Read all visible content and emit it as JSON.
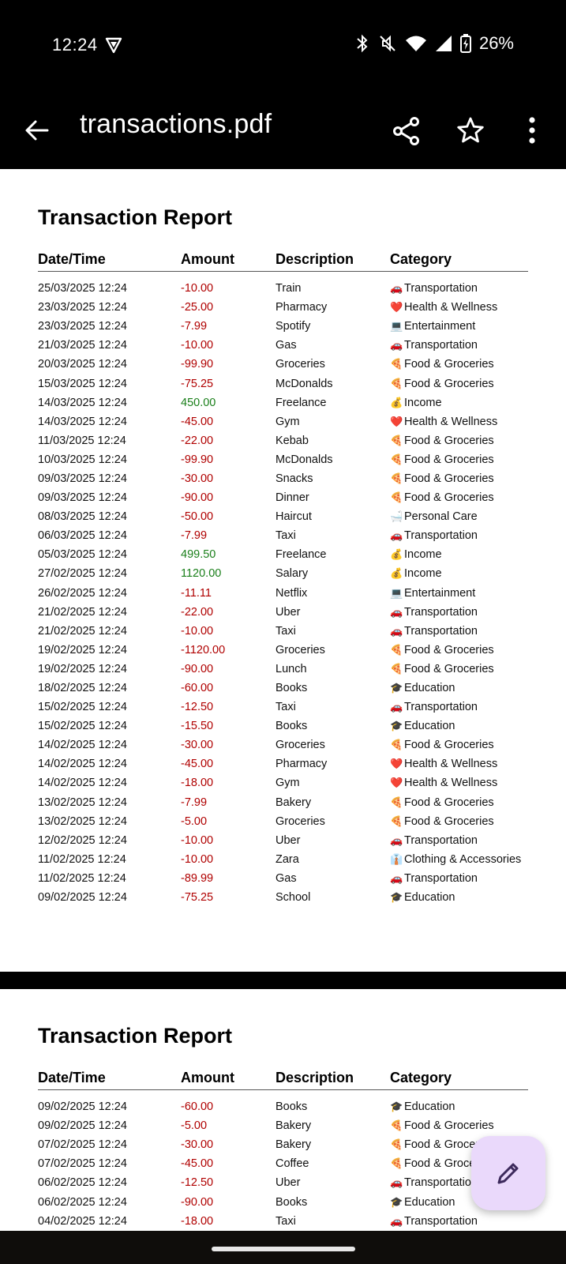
{
  "status": {
    "time": "12:24",
    "battery": "26%"
  },
  "app_bar": {
    "title": "transactions.pdf"
  },
  "pages": [
    {
      "title": "Transaction Report",
      "headers": {
        "date": "Date/Time",
        "amount": "Amount",
        "description": "Description",
        "category": "Category"
      },
      "rows": [
        {
          "date": "25/03/2025 12:24",
          "amount": "-10.00",
          "sign": "neg",
          "description": "Train",
          "icon": "🚗",
          "category": "Transportation"
        },
        {
          "date": "23/03/2025 12:24",
          "amount": "-25.00",
          "sign": "neg",
          "description": "Pharmacy",
          "icon": "❤️",
          "category": "Health & Wellness"
        },
        {
          "date": "23/03/2025 12:24",
          "amount": "-7.99",
          "sign": "neg",
          "description": "Spotify",
          "icon": "💻",
          "category": "Entertainment"
        },
        {
          "date": "21/03/2025 12:24",
          "amount": "-10.00",
          "sign": "neg",
          "description": "Gas",
          "icon": "🚗",
          "category": "Transportation"
        },
        {
          "date": "20/03/2025 12:24",
          "amount": "-99.90",
          "sign": "neg",
          "description": "Groceries",
          "icon": "🍕",
          "category": "Food & Groceries"
        },
        {
          "date": "15/03/2025 12:24",
          "amount": "-75.25",
          "sign": "neg",
          "description": "McDonalds",
          "icon": "🍕",
          "category": "Food & Groceries"
        },
        {
          "date": "14/03/2025 12:24",
          "amount": "450.00",
          "sign": "pos",
          "description": "Freelance",
          "icon": "💰",
          "category": "Income"
        },
        {
          "date": "14/03/2025 12:24",
          "amount": "-45.00",
          "sign": "neg",
          "description": "Gym",
          "icon": "❤️",
          "category": "Health & Wellness"
        },
        {
          "date": "11/03/2025 12:24",
          "amount": "-22.00",
          "sign": "neg",
          "description": "Kebab",
          "icon": "🍕",
          "category": "Food & Groceries"
        },
        {
          "date": "10/03/2025 12:24",
          "amount": "-99.90",
          "sign": "neg",
          "description": "McDonalds",
          "icon": "🍕",
          "category": "Food & Groceries"
        },
        {
          "date": "09/03/2025 12:24",
          "amount": "-30.00",
          "sign": "neg",
          "description": "Snacks",
          "icon": "🍕",
          "category": "Food & Groceries"
        },
        {
          "date": "09/03/2025 12:24",
          "amount": "-90.00",
          "sign": "neg",
          "description": "Dinner",
          "icon": "🍕",
          "category": "Food & Groceries"
        },
        {
          "date": "08/03/2025 12:24",
          "amount": "-50.00",
          "sign": "neg",
          "description": "Haircut",
          "icon": "🛁",
          "category": "Personal Care"
        },
        {
          "date": "06/03/2025 12:24",
          "amount": "-7.99",
          "sign": "neg",
          "description": "Taxi",
          "icon": "🚗",
          "category": "Transportation"
        },
        {
          "date": "05/03/2025 12:24",
          "amount": "499.50",
          "sign": "pos",
          "description": "Freelance",
          "icon": "💰",
          "category": "Income"
        },
        {
          "date": "27/02/2025 12:24",
          "amount": "1120.00",
          "sign": "pos",
          "description": "Salary",
          "icon": "💰",
          "category": "Income"
        },
        {
          "date": "26/02/2025 12:24",
          "amount": "-11.11",
          "sign": "neg",
          "description": "Netflix",
          "icon": "💻",
          "category": "Entertainment"
        },
        {
          "date": "21/02/2025 12:24",
          "amount": "-22.00",
          "sign": "neg",
          "description": "Uber",
          "icon": "🚗",
          "category": "Transportation"
        },
        {
          "date": "21/02/2025 12:24",
          "amount": "-10.00",
          "sign": "neg",
          "description": "Taxi",
          "icon": "🚗",
          "category": "Transportation"
        },
        {
          "date": "19/02/2025 12:24",
          "amount": "-1120.00",
          "sign": "neg",
          "description": "Groceries",
          "icon": "🍕",
          "category": "Food & Groceries"
        },
        {
          "date": "19/02/2025 12:24",
          "amount": "-90.00",
          "sign": "neg",
          "description": "Lunch",
          "icon": "🍕",
          "category": "Food & Groceries"
        },
        {
          "date": "18/02/2025 12:24",
          "amount": "-60.00",
          "sign": "neg",
          "description": "Books",
          "icon": "🎓",
          "category": "Education"
        },
        {
          "date": "15/02/2025 12:24",
          "amount": "-12.50",
          "sign": "neg",
          "description": "Taxi",
          "icon": "🚗",
          "category": "Transportation"
        },
        {
          "date": "15/02/2025 12:24",
          "amount": "-15.50",
          "sign": "neg",
          "description": "Books",
          "icon": "🎓",
          "category": "Education"
        },
        {
          "date": "14/02/2025 12:24",
          "amount": "-30.00",
          "sign": "neg",
          "description": "Groceries",
          "icon": "🍕",
          "category": "Food & Groceries"
        },
        {
          "date": "14/02/2025 12:24",
          "amount": "-45.00",
          "sign": "neg",
          "description": "Pharmacy",
          "icon": "❤️",
          "category": "Health & Wellness"
        },
        {
          "date": "14/02/2025 12:24",
          "amount": "-18.00",
          "sign": "neg",
          "description": "Gym",
          "icon": "❤️",
          "category": "Health & Wellness"
        },
        {
          "date": "13/02/2025 12:24",
          "amount": "-7.99",
          "sign": "neg",
          "description": "Bakery",
          "icon": "🍕",
          "category": "Food & Groceries"
        },
        {
          "date": "13/02/2025 12:24",
          "amount": "-5.00",
          "sign": "neg",
          "description": "Groceries",
          "icon": "🍕",
          "category": "Food & Groceries"
        },
        {
          "date": "12/02/2025 12:24",
          "amount": "-10.00",
          "sign": "neg",
          "description": "Uber",
          "icon": "🚗",
          "category": "Transportation"
        },
        {
          "date": "11/02/2025 12:24",
          "amount": "-10.00",
          "sign": "neg",
          "description": "Zara",
          "icon": "👔",
          "category": "Clothing & Accessories"
        },
        {
          "date": "11/02/2025 12:24",
          "amount": "-89.99",
          "sign": "neg",
          "description": "Gas",
          "icon": "🚗",
          "category": "Transportation"
        },
        {
          "date": "09/02/2025 12:24",
          "amount": "-75.25",
          "sign": "neg",
          "description": "School",
          "icon": "🎓",
          "category": "Education"
        }
      ]
    },
    {
      "title": "Transaction Report",
      "headers": {
        "date": "Date/Time",
        "amount": "Amount",
        "description": "Description",
        "category": "Category"
      },
      "rows": [
        {
          "date": "09/02/2025 12:24",
          "amount": "-60.00",
          "sign": "neg",
          "description": "Books",
          "icon": "🎓",
          "category": "Education"
        },
        {
          "date": "09/02/2025 12:24",
          "amount": "-5.00",
          "sign": "neg",
          "description": "Bakery",
          "icon": "🍕",
          "category": "Food & Groceries"
        },
        {
          "date": "07/02/2025 12:24",
          "amount": "-30.00",
          "sign": "neg",
          "description": "Bakery",
          "icon": "🍕",
          "category": "Food & Groceries"
        },
        {
          "date": "07/02/2025 12:24",
          "amount": "-45.00",
          "sign": "neg",
          "description": "Coffee",
          "icon": "🍕",
          "category": "Food & Groceries"
        },
        {
          "date": "06/02/2025 12:24",
          "amount": "-12.50",
          "sign": "neg",
          "description": "Uber",
          "icon": "🚗",
          "category": "Transportation"
        },
        {
          "date": "06/02/2025 12:24",
          "amount": "-90.00",
          "sign": "neg",
          "description": "Books",
          "icon": "🎓",
          "category": "Education"
        },
        {
          "date": "04/02/2025 12:24",
          "amount": "-18.00",
          "sign": "neg",
          "description": "Taxi",
          "icon": "🚗",
          "category": "Transportation"
        }
      ]
    }
  ]
}
